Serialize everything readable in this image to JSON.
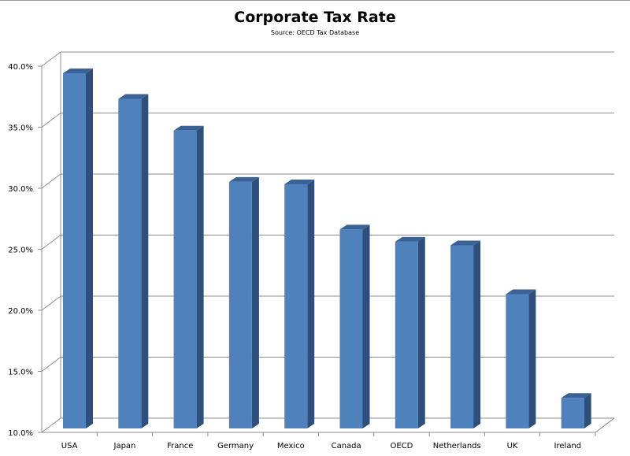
{
  "chart_data": {
    "type": "bar",
    "title": "Corporate Tax Rate",
    "subtitle": "Source: OECD Tax Database",
    "categories": [
      "USA",
      "Japan",
      "France",
      "Germany",
      "Mexico",
      "Canada",
      "OECD",
      "Netherlands",
      "UK",
      "Ireland"
    ],
    "values": [
      39.1,
      37.0,
      34.4,
      30.2,
      30.0,
      26.3,
      25.3,
      25.0,
      21.0,
      12.5
    ],
    "ylim": [
      10,
      40
    ],
    "yticks": [
      "10.0%",
      "15.0%",
      "20.0%",
      "25.0%",
      "30.0%",
      "35.0%",
      "40.0%"
    ],
    "ytick_values": [
      10,
      15,
      20,
      25,
      30,
      35,
      40
    ],
    "grid": true,
    "style": "3d-column",
    "colors": {
      "front": "#4f81bd",
      "side": "#2f4f7a",
      "top": "#3b6297",
      "grid": "#8c8c8c"
    }
  }
}
